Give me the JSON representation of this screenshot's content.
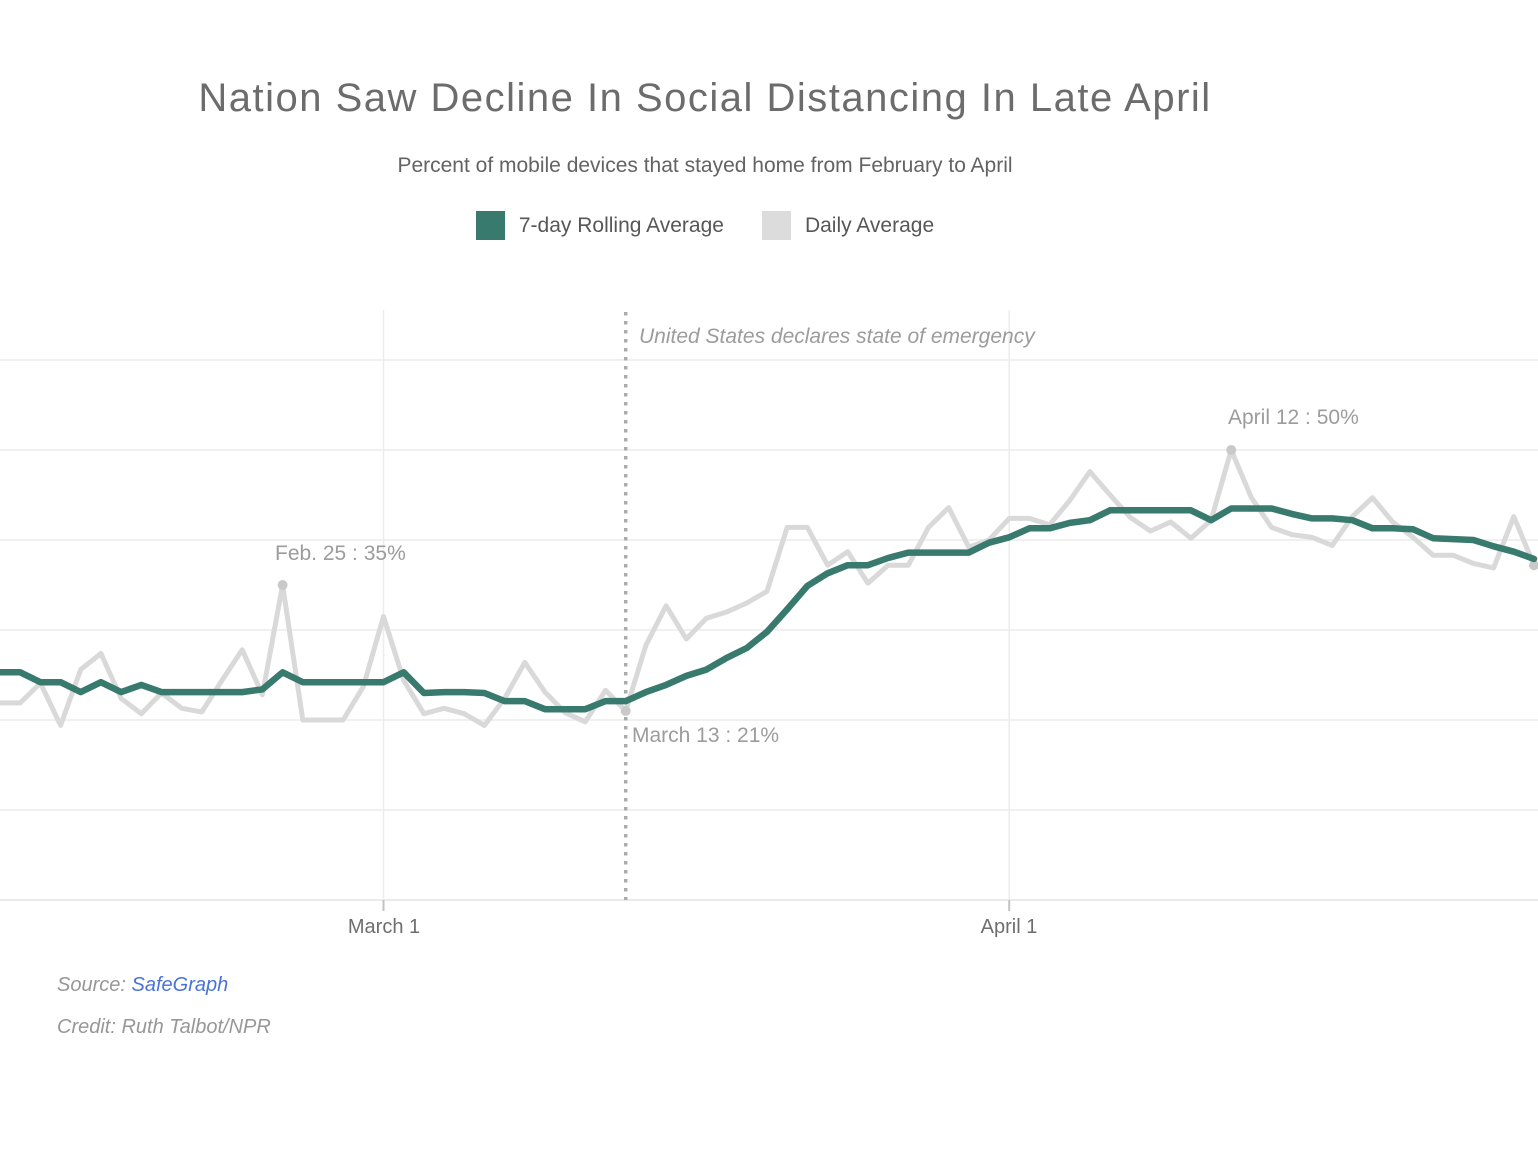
{
  "header": {
    "title": "Nation Saw Decline In Social Distancing In Late April",
    "subtitle": "Percent of mobile devices that stayed home from February to April"
  },
  "legend": [
    {
      "label": "7-day Rolling Average",
      "color": "#387a6e"
    },
    {
      "label": "Daily Average",
      "color": "#dcdcdc"
    }
  ],
  "footer": {
    "source_label": "Source:",
    "source_link": "SafeGraph",
    "credit": "Credit: Ruth Talbot/NPR"
  },
  "colors": {
    "rolling_line": "#387a6e",
    "daily_line": "#d9d9d9",
    "gridline": "#ececec",
    "axis_line": "#e3e3e3",
    "tick": "#c2c2c2",
    "event_line": "#ababab",
    "marker_dot": "#c9c9c9",
    "annotation_text": "#9c9c9c",
    "link_blue": "#4a73d8"
  },
  "chart_data": {
    "type": "line",
    "title": "Nation Saw Decline In Social Distancing In Late April",
    "subtitle": "Percent of mobile devices that stayed home from February to April",
    "y_unit": "%",
    "ylim": [
      0,
      65
    ],
    "y_gridlines": [
      0,
      10,
      20,
      30,
      40,
      50,
      60
    ],
    "grid": true,
    "legend_position": "top",
    "x": [
      "Feb 11",
      "Feb 12",
      "Feb 13",
      "Feb 14",
      "Feb 15",
      "Feb 16",
      "Feb 17",
      "Feb 18",
      "Feb 19",
      "Feb 20",
      "Feb 21",
      "Feb 22",
      "Feb 23",
      "Feb 24",
      "Feb 25",
      "Feb 26",
      "Feb 27",
      "Feb 28",
      "Feb 29",
      "Mar 1",
      "Mar 2",
      "Mar 3",
      "Mar 4",
      "Mar 5",
      "Mar 6",
      "Mar 7",
      "Mar 8",
      "Mar 9",
      "Mar 10",
      "Mar 11",
      "Mar 12",
      "Mar 13",
      "Mar 14",
      "Mar 15",
      "Mar 16",
      "Mar 17",
      "Mar 18",
      "Mar 19",
      "Mar 20",
      "Mar 21",
      "Mar 22",
      "Mar 23",
      "Mar 24",
      "Mar 25",
      "Mar 26",
      "Mar 27",
      "Mar 28",
      "Mar 29",
      "Mar 30",
      "Mar 31",
      "Apr 1",
      "Apr 2",
      "Apr 3",
      "Apr 4",
      "Apr 5",
      "Apr 6",
      "Apr 7",
      "Apr 8",
      "Apr 9",
      "Apr 10",
      "Apr 11",
      "Apr 12",
      "Apr 13",
      "Apr 14",
      "Apr 15",
      "Apr 16",
      "Apr 17",
      "Apr 18",
      "Apr 19",
      "Apr 20",
      "Apr 21",
      "Apr 22",
      "Apr 23",
      "Apr 24",
      "Apr 25",
      "Apr 26",
      "Apr 27"
    ],
    "x_ticks": [
      {
        "index": 19,
        "label": "March 1"
      },
      {
        "index": 50,
        "label": "April 1"
      }
    ],
    "event_line": {
      "index": 31,
      "label": "United States declares state of emergency"
    },
    "markers": [
      {
        "index": 14,
        "value": 35,
        "label": "Feb. 25 : 35%"
      },
      {
        "index": 31,
        "value": 21,
        "label": "March 13 : 21%"
      },
      {
        "index": 61,
        "value": 50,
        "label": "April 12 : 50%"
      },
      {
        "index": 76,
        "value": 37.2,
        "label": ""
      }
    ],
    "series": [
      {
        "name": "7-day Rolling Average",
        "color": "#387a6e",
        "values": [
          25.3,
          25.3,
          24.2,
          24.2,
          23.1,
          24.2,
          23.1,
          23.9,
          23.1,
          23.1,
          23.1,
          23.1,
          23.1,
          23.4,
          25.3,
          24.2,
          24.2,
          24.2,
          24.2,
          24.2,
          25.3,
          23.0,
          23.1,
          23.1,
          23.0,
          22.1,
          22.1,
          21.2,
          21.2,
          21.2,
          22.1,
          22.1,
          23.1,
          23.9,
          24.9,
          25.6,
          26.9,
          28.0,
          29.8,
          32.3,
          34.9,
          36.3,
          37.2,
          37.2,
          38.0,
          38.6,
          38.6,
          38.6,
          38.6,
          39.7,
          40.3,
          41.3,
          41.3,
          41.9,
          42.2,
          43.3,
          43.3,
          43.3,
          43.3,
          43.3,
          42.2,
          43.5,
          43.5,
          43.5,
          42.9,
          42.4,
          42.4,
          42.2,
          41.3,
          41.3,
          41.2,
          40.2,
          40.1,
          40.0,
          39.3,
          38.7,
          37.9
        ]
      },
      {
        "name": "Daily Average",
        "color": "#d9d9d9",
        "values": [
          21.9,
          21.9,
          24.1,
          19.4,
          25.6,
          27.4,
          22.4,
          20.7,
          23.0,
          21.3,
          20.9,
          24.4,
          27.8,
          22.8,
          35.0,
          20.0,
          20.0,
          20.0,
          23.7,
          31.5,
          24.4,
          20.7,
          21.3,
          20.7,
          19.4,
          22.4,
          26.4,
          23.1,
          20.8,
          19.8,
          23.3,
          21.0,
          28.3,
          32.7,
          29.0,
          31.3,
          32.0,
          33.0,
          34.3,
          41.4,
          41.4,
          37.2,
          38.7,
          35.2,
          37.2,
          37.2,
          41.4,
          43.6,
          39.2,
          40.0,
          42.4,
          42.4,
          41.7,
          44.4,
          47.6,
          45.0,
          42.5,
          41.0,
          42.0,
          40.2,
          42.2,
          50.0,
          44.7,
          41.4,
          40.6,
          40.3,
          39.4,
          42.6,
          44.7,
          42.0,
          40.3,
          38.3,
          38.3,
          37.4,
          36.9,
          42.6,
          37.2
        ]
      }
    ]
  }
}
